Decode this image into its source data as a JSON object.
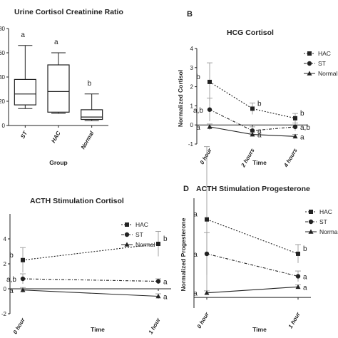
{
  "chart_data": [
    {
      "panel_letter": "",
      "type": "box",
      "title": "Urine Cortisol Creatinine Ratio",
      "xlabel": "Group",
      "ylabel": "",
      "ylim": [
        0,
        80
      ],
      "yticks": [
        0,
        20,
        40,
        60,
        80
      ],
      "ytick_labels": [
        "0",
        "20",
        "40",
        "60",
        "80"
      ],
      "grid": false,
      "categories": [
        "ST",
        "HAC",
        "Normal"
      ],
      "boxes": [
        {
          "min": 14,
          "q1": 17,
          "median": 26,
          "q3": 38,
          "max": 66
        },
        {
          "min": 10,
          "q1": 11,
          "median": 28,
          "q3": 50,
          "max": 60
        },
        {
          "min": 4,
          "q1": 5,
          "median": 7,
          "q3": 13,
          "max": 26
        }
      ],
      "significance": [
        "a",
        "a",
        "b"
      ]
    },
    {
      "panel_letter": "B",
      "type": "line",
      "title": "HCG Cortisol",
      "xlabel": "Time",
      "ylabel": "Normalized Cortisol",
      "ylim": [
        -1,
        4
      ],
      "yticks": [
        -1,
        0,
        1,
        2,
        3,
        4
      ],
      "ytick_labels": [
        "-1",
        "0",
        "1",
        "2",
        "3",
        "4"
      ],
      "grid": false,
      "legend_position": "top-right",
      "categories": [
        "0 hour",
        "2 hours",
        "4 hours"
      ],
      "series": [
        {
          "name": "HAC",
          "marker": "square",
          "dash": "dotted",
          "values": [
            2.25,
            0.85,
            0.35
          ],
          "errors": [
            1.0,
            0.3,
            0.25
          ],
          "labels": [
            "b",
            "b",
            "b"
          ]
        },
        {
          "name": "ST",
          "marker": "circle",
          "dash": "dashdot",
          "values": [
            0.8,
            -0.3,
            -0.1
          ],
          "errors": [
            0.6,
            0.2,
            0.2
          ],
          "labels": [
            "a,b",
            "a",
            "a,b"
          ]
        },
        {
          "name": "Normal",
          "marker": "triangle",
          "dash": "solid",
          "values": [
            -0.1,
            -0.5,
            -0.6
          ],
          "errors": [
            0.15,
            0.1,
            0.1
          ],
          "labels": [
            "a",
            "a",
            "a"
          ]
        }
      ]
    },
    {
      "panel_letter": "",
      "type": "line",
      "title": "ACTH Stimulation Cortisol",
      "xlabel": "Time",
      "ylabel": "",
      "ylim": [
        -2,
        6
      ],
      "yticks": [
        -2,
        0,
        2,
        4
      ],
      "ytick_labels": [
        "-2",
        "0",
        "2",
        "4"
      ],
      "grid": false,
      "legend_position": "top-right",
      "categories": [
        "0 hour",
        "1 hour"
      ],
      "series": [
        {
          "name": "HAC",
          "marker": "square",
          "dash": "dotted",
          "values": [
            2.3,
            3.6
          ],
          "errors": [
            1.0,
            1.0
          ],
          "labels": [
            "b",
            "b"
          ]
        },
        {
          "name": "ST",
          "marker": "circle",
          "dash": "dashdot",
          "values": [
            0.8,
            0.6
          ],
          "errors": [
            0.4,
            0.2
          ],
          "labels": [
            "a,b",
            "a"
          ]
        },
        {
          "name": "Normal",
          "marker": "triangle",
          "dash": "solid",
          "values": [
            -0.1,
            -0.6
          ],
          "errors": [
            0.2,
            0.2
          ],
          "labels": [
            "a",
            "a"
          ]
        }
      ]
    },
    {
      "panel_letter": "D",
      "type": "line",
      "title": "ACTH Stimulation Progesterone",
      "xlabel": "Time",
      "ylabel": "Normalized Progesterone",
      "ylim": [
        -0.8,
        7.5
      ],
      "yticks": [],
      "ytick_labels": [],
      "grid": false,
      "legend_position": "top-right",
      "categories": [
        "0 hour",
        "1 hour"
      ],
      "series": [
        {
          "name": "HAC",
          "marker": "square",
          "dash": "dotted",
          "values": [
            5.9,
            3.3
          ],
          "errors": [
            5.5,
            0.7
          ],
          "labels": [
            "a",
            "b"
          ]
        },
        {
          "name": "ST",
          "marker": "circle",
          "dash": "dashdot",
          "values": [
            3.3,
            1.6
          ],
          "errors": [
            1.6,
            0.4
          ],
          "labels": [
            "a",
            "a"
          ]
        },
        {
          "name": "Normal",
          "marker": "triangle",
          "dash": "solid",
          "values": [
            0.35,
            0.8
          ],
          "errors": [
            0.15,
            0.15
          ],
          "labels": [
            "a",
            "a"
          ]
        }
      ]
    }
  ]
}
